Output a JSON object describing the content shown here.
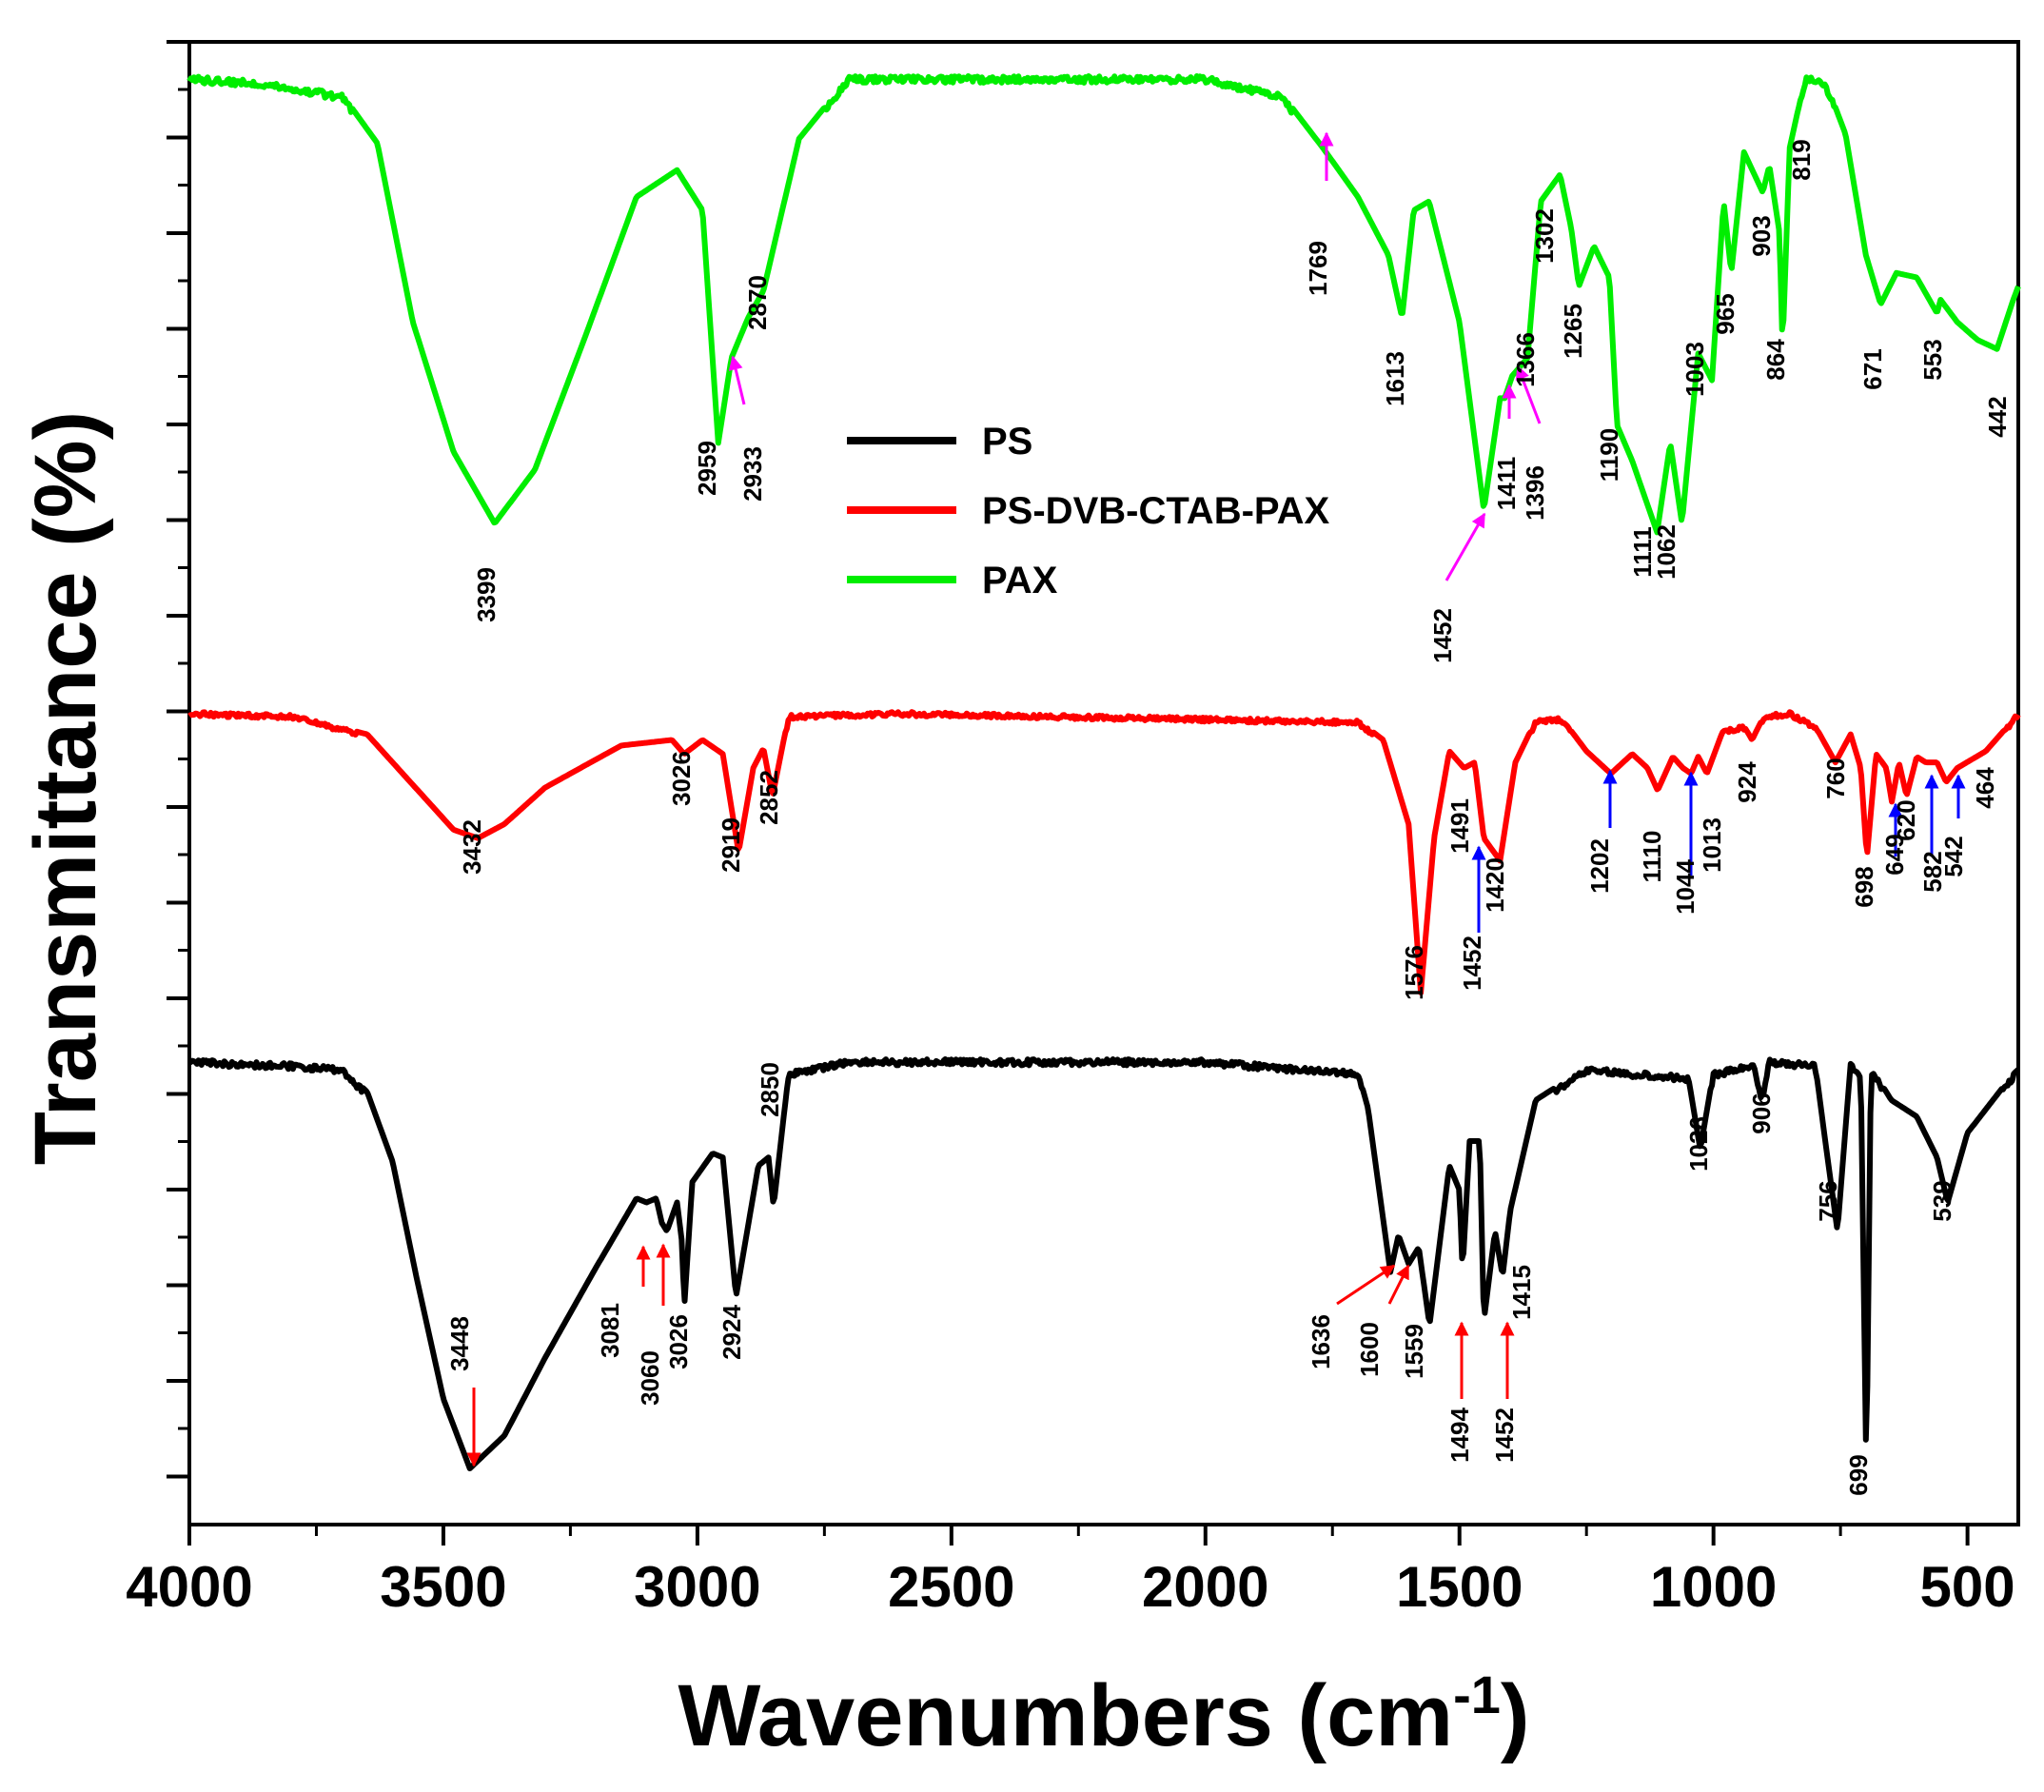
{
  "chart_data": {
    "type": "line",
    "title": "",
    "xlabel": "Wavenumbers (cm",
    "xlabel_sup": "-1",
    "xlabel_close": ")",
    "ylabel": "Transmittance (%)",
    "xlim": [
      4000,
      400
    ],
    "x_reversed": true,
    "x_ticks": [
      4000,
      3500,
      3000,
      2500,
      2000,
      1500,
      1000,
      500
    ],
    "y_ticks_labeled": false,
    "grid": false,
    "legend_position": "center",
    "legend": [
      {
        "name": "PS",
        "color": "#000000"
      },
      {
        "name": "PS-DVB-CTAB-PAX",
        "color": "#ff0000"
      },
      {
        "name": "PAX",
        "color": "#00ee00"
      }
    ],
    "series": [
      {
        "name": "PAX",
        "color": "#00ee00",
        "baseline": 1.0,
        "points": [
          [
            4000,
            1.0
          ],
          [
            3850,
            0.99
          ],
          [
            3700,
            0.96
          ],
          [
            3630,
            0.85
          ],
          [
            3560,
            0.45
          ],
          [
            3480,
            0.16
          ],
          [
            3399,
            0.0
          ],
          [
            3320,
            0.12
          ],
          [
            3220,
            0.42
          ],
          [
            3120,
            0.73
          ],
          [
            3040,
            0.79
          ],
          [
            2990,
            0.7
          ],
          [
            2959,
            0.18
          ],
          [
            2933,
            0.37
          ],
          [
            2900,
            0.46
          ],
          [
            2870,
            0.52
          ],
          [
            2800,
            0.86
          ],
          [
            2700,
            1.0
          ],
          [
            2000,
            1.0
          ],
          [
            1850,
            0.96
          ],
          [
            1769,
            0.84
          ],
          [
            1700,
            0.73
          ],
          [
            1640,
            0.6
          ],
          [
            1613,
            0.46
          ],
          [
            1590,
            0.7
          ],
          [
            1560,
            0.72
          ],
          [
            1500,
            0.45
          ],
          [
            1452,
            0.03
          ],
          [
            1420,
            0.28
          ],
          [
            1411,
            0.28
          ],
          [
            1396,
            0.33
          ],
          [
            1366,
            0.37
          ],
          [
            1340,
            0.72
          ],
          [
            1302,
            0.78
          ],
          [
            1280,
            0.66
          ],
          [
            1265,
            0.53
          ],
          [
            1235,
            0.62
          ],
          [
            1205,
            0.55
          ],
          [
            1190,
            0.22
          ],
          [
            1160,
            0.14
          ],
          [
            1111,
            -0.02
          ],
          [
            1085,
            0.18
          ],
          [
            1062,
            0.0
          ],
          [
            1030,
            0.38
          ],
          [
            1003,
            0.32
          ],
          [
            980,
            0.72
          ],
          [
            965,
            0.56
          ],
          [
            940,
            0.83
          ],
          [
            903,
            0.74
          ],
          [
            890,
            0.8
          ],
          [
            870,
            0.65
          ],
          [
            864,
            0.39
          ],
          [
            850,
            0.84
          ],
          [
            819,
            1.0
          ],
          [
            780,
            0.99
          ],
          [
            740,
            0.87
          ],
          [
            700,
            0.6
          ],
          [
            671,
            0.49
          ],
          [
            640,
            0.56
          ],
          [
            600,
            0.55
          ],
          [
            560,
            0.47
          ],
          [
            553,
            0.5
          ],
          [
            520,
            0.45
          ],
          [
            480,
            0.41
          ],
          [
            442,
            0.39
          ],
          [
            410,
            0.5
          ],
          [
            400,
            0.53
          ]
        ]
      },
      {
        "name": "PS-DVB-CTAB-PAX",
        "color": "#ff0000",
        "baseline": 1.0,
        "points": [
          [
            4000,
            1.0
          ],
          [
            3800,
            0.99
          ],
          [
            3650,
            0.92
          ],
          [
            3550,
            0.72
          ],
          [
            3480,
            0.58
          ],
          [
            3432,
            0.55
          ],
          [
            3380,
            0.6
          ],
          [
            3300,
            0.73
          ],
          [
            3150,
            0.88
          ],
          [
            3050,
            0.9
          ],
          [
            3026,
            0.85
          ],
          [
            2990,
            0.9
          ],
          [
            2950,
            0.85
          ],
          [
            2919,
            0.5
          ],
          [
            2890,
            0.8
          ],
          [
            2870,
            0.87
          ],
          [
            2852,
            0.7
          ],
          [
            2820,
            0.99
          ],
          [
            2600,
            1.0
          ],
          [
            1700,
            0.97
          ],
          [
            1650,
            0.9
          ],
          [
            1600,
            0.6
          ],
          [
            1576,
            0.0
          ],
          [
            1550,
            0.55
          ],
          [
            1520,
            0.86
          ],
          [
            1491,
            0.8
          ],
          [
            1470,
            0.82
          ],
          [
            1452,
            0.55
          ],
          [
            1420,
            0.47
          ],
          [
            1390,
            0.82
          ],
          [
            1350,
            0.97
          ],
          [
            1300,
            0.98
          ],
          [
            1250,
            0.86
          ],
          [
            1202,
            0.78
          ],
          [
            1160,
            0.85
          ],
          [
            1130,
            0.8
          ],
          [
            1110,
            0.72
          ],
          [
            1080,
            0.84
          ],
          [
            1060,
            0.8
          ],
          [
            1044,
            0.78
          ],
          [
            1030,
            0.84
          ],
          [
            1013,
            0.78
          ],
          [
            980,
            0.94
          ],
          [
            940,
            0.95
          ],
          [
            924,
            0.9
          ],
          [
            900,
            0.99
          ],
          [
            850,
            1.0
          ],
          [
            800,
            0.95
          ],
          [
            760,
            0.82
          ],
          [
            730,
            0.92
          ],
          [
            710,
            0.8
          ],
          [
            698,
            0.48
          ],
          [
            680,
            0.85
          ],
          [
            660,
            0.8
          ],
          [
            649,
            0.68
          ],
          [
            635,
            0.82
          ],
          [
            620,
            0.7
          ],
          [
            600,
            0.84
          ],
          [
            582,
            0.82
          ],
          [
            560,
            0.82
          ],
          [
            542,
            0.75
          ],
          [
            520,
            0.8
          ],
          [
            464,
            0.86
          ],
          [
            430,
            0.93
          ],
          [
            400,
            1.0
          ]
        ]
      },
      {
        "name": "PS",
        "color": "#000000",
        "baseline": 1.0,
        "points": [
          [
            4000,
            1.0
          ],
          [
            3800,
            0.99
          ],
          [
            3700,
            0.98
          ],
          [
            3650,
            0.92
          ],
          [
            3600,
            0.75
          ],
          [
            3550,
            0.45
          ],
          [
            3500,
            0.17
          ],
          [
            3448,
            0.0
          ],
          [
            3380,
            0.08
          ],
          [
            3300,
            0.27
          ],
          [
            3200,
            0.49
          ],
          [
            3120,
            0.66
          ],
          [
            3100,
            0.65
          ],
          [
            3081,
            0.66
          ],
          [
            3070,
            0.6
          ],
          [
            3060,
            0.58
          ],
          [
            3040,
            0.65
          ],
          [
            3030,
            0.55
          ],
          [
            3026,
            0.39
          ],
          [
            3010,
            0.7
          ],
          [
            2970,
            0.77
          ],
          [
            2950,
            0.76
          ],
          [
            2924,
            0.42
          ],
          [
            2880,
            0.74
          ],
          [
            2860,
            0.76
          ],
          [
            2850,
            0.64
          ],
          [
            2820,
            0.97
          ],
          [
            2700,
            1.0
          ],
          [
            2000,
            1.0
          ],
          [
            1700,
            0.97
          ],
          [
            1680,
            0.88
          ],
          [
            1636,
            0.48
          ],
          [
            1620,
            0.57
          ],
          [
            1600,
            0.5
          ],
          [
            1580,
            0.54
          ],
          [
            1559,
            0.35
          ],
          [
            1520,
            0.74
          ],
          [
            1500,
            0.68
          ],
          [
            1494,
            0.48
          ],
          [
            1480,
            0.8
          ],
          [
            1460,
            0.8
          ],
          [
            1452,
            0.36
          ],
          [
            1430,
            0.58
          ],
          [
            1415,
            0.47
          ],
          [
            1400,
            0.63
          ],
          [
            1350,
            0.9
          ],
          [
            1250,
            0.98
          ],
          [
            1150,
            0.97
          ],
          [
            1050,
            0.96
          ],
          [
            1026,
            0.78
          ],
          [
            1000,
            0.97
          ],
          [
            920,
            0.99
          ],
          [
            906,
            0.9
          ],
          [
            890,
            1.0
          ],
          [
            800,
            0.99
          ],
          [
            780,
            0.8
          ],
          [
            756,
            0.58
          ],
          [
            730,
            0.99
          ],
          [
            710,
            0.97
          ],
          [
            699,
            -0.02
          ],
          [
            690,
            0.98
          ],
          [
            650,
            0.9
          ],
          [
            600,
            0.86
          ],
          [
            560,
            0.76
          ],
          [
            539,
            0.65
          ],
          [
            500,
            0.82
          ],
          [
            400,
            0.98
          ]
        ]
      }
    ],
    "annotations": [
      {
        "series": "PAX",
        "labels": [
          "3399",
          "2959",
          "2933",
          "2870",
          "1769",
          "1613",
          "1452",
          "1411",
          "1396",
          "1366",
          "1302",
          "1265",
          "1190",
          "1111",
          "1062",
          "1003",
          "965",
          "903",
          "864",
          "819",
          "671",
          "553",
          "442"
        ]
      },
      {
        "series": "PS-DVB-CTAB-PAX",
        "labels": [
          "3432",
          "3026",
          "2919",
          "2852",
          "1576",
          "1491",
          "1452",
          "1420",
          "1202",
          "1110",
          "1044",
          "1013",
          "924",
          "760",
          "698",
          "649",
          "620",
          "582",
          "542",
          "464"
        ]
      },
      {
        "series": "PS",
        "labels": [
          "3448",
          "3081",
          "3060",
          "3026",
          "2924",
          "2850",
          "1636",
          "1600",
          "1559",
          "1494",
          "1452",
          "1415",
          "1026",
          "906",
          "756",
          "699",
          "539"
        ]
      }
    ]
  },
  "arrow_colors": {
    "magenta": "#ff00ff",
    "blue": "#0000ff",
    "red": "#ff0000"
  }
}
